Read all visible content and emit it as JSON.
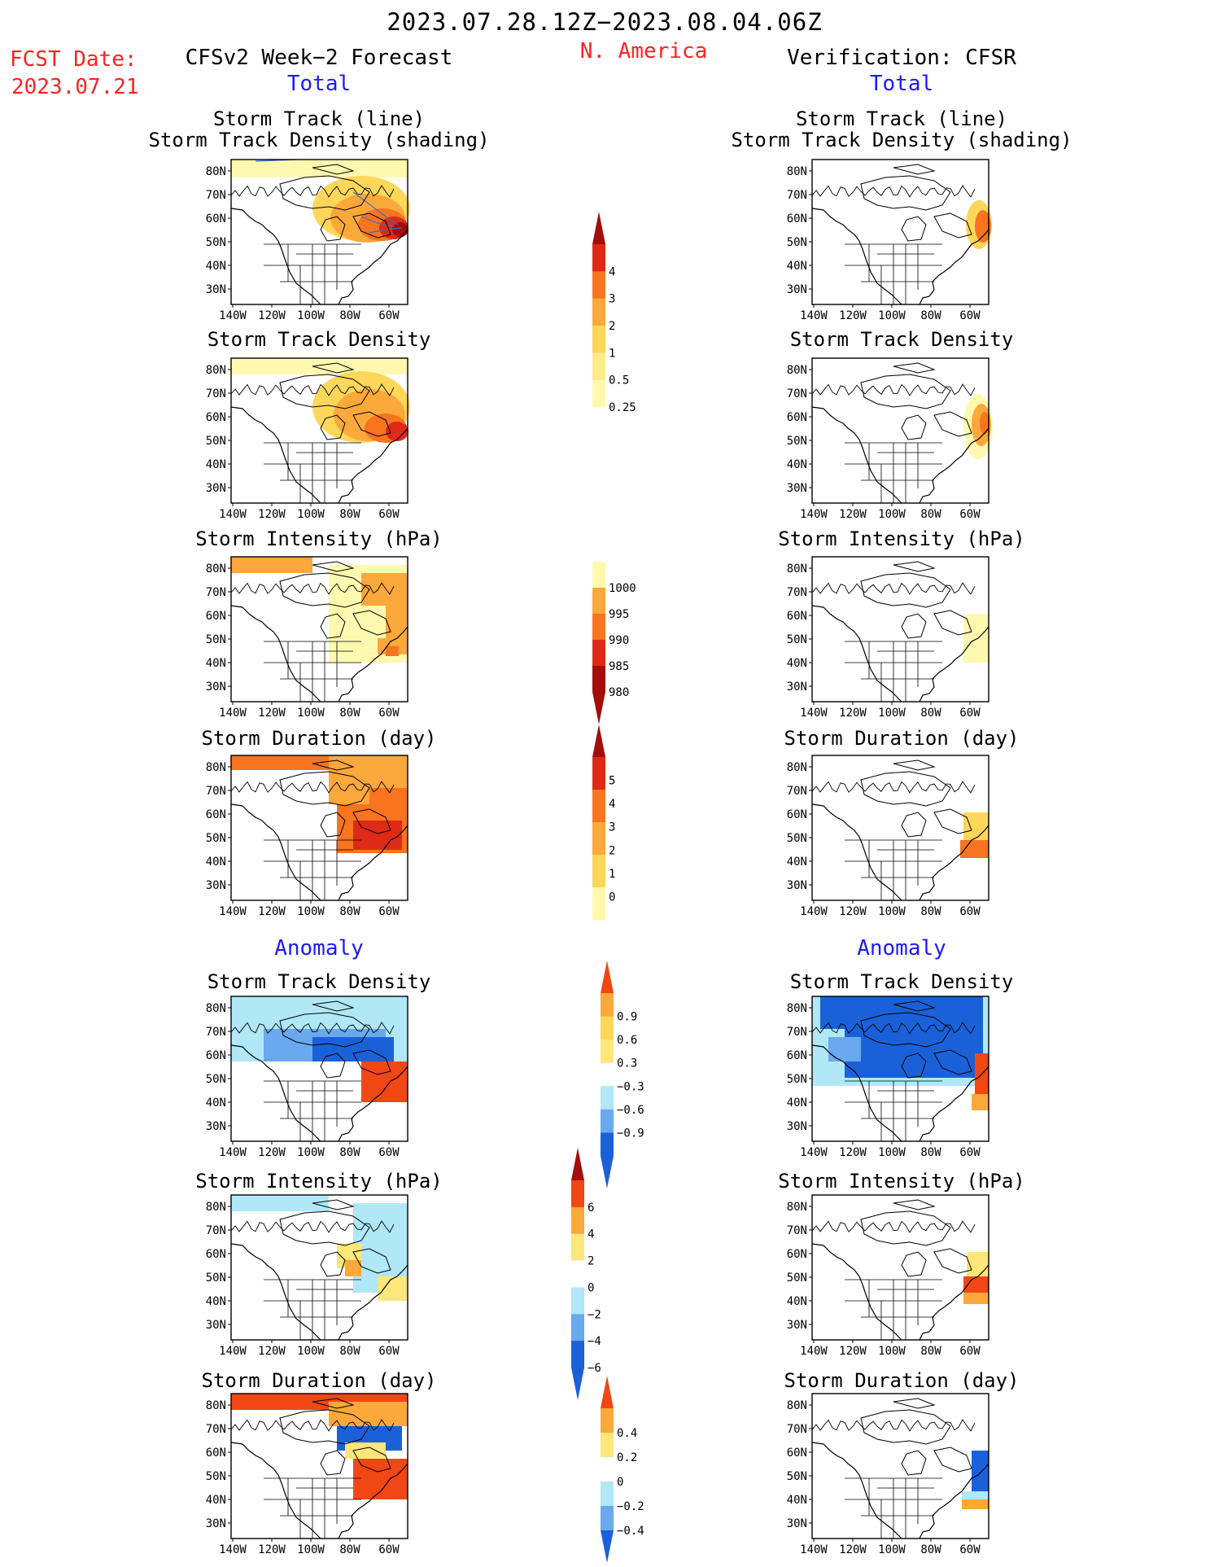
{
  "header": {
    "date_range": "2023.07.28.12Z−2023.08.04.06Z",
    "fcst_label": "FCST Date:",
    "fcst_date": "2023.07.21",
    "left_title": "CFSv2 Week−2 Forecast",
    "region": "N. America",
    "right_title": "Verification: CFSR",
    "total_label": "Total",
    "anomaly_label": "Anomaly"
  },
  "axes": {
    "lat_ticks": [
      "80N",
      "70N",
      "60N",
      "50N",
      "40N",
      "30N"
    ],
    "lon_ticks": [
      "140W",
      "120W",
      "100W",
      "80W",
      "60W"
    ]
  },
  "colors": {
    "total_density": [
      "#fff9b0",
      "#fcd75a",
      "#fca83a",
      "#f8741f",
      "#de2a16",
      "#a30d0a"
    ],
    "total_intensity": [
      "#fff9b0",
      "#fca83a",
      "#f8741f",
      "#de2a16",
      "#a30d0a"
    ],
    "anomaly": [
      "#1a61d9",
      "#6aa9ee",
      "#b0e8f7",
      "#ffffff",
      "#fde67a",
      "#fca83a",
      "#f14715"
    ]
  },
  "colorbars": [
    {
      "id": "cb-density",
      "labels": [
        "4",
        "3",
        "2",
        "1",
        "0.5",
        "0.25"
      ]
    },
    {
      "id": "cb-intensity",
      "labels": [
        "1000",
        "995",
        "990",
        "985",
        "980"
      ]
    },
    {
      "id": "cb-duration",
      "labels": [
        "5",
        "4",
        "3",
        "2",
        "1",
        "0"
      ]
    },
    {
      "id": "cb-anom-density",
      "labels": [
        "0.9",
        "0.6",
        "0.3",
        "−0.3",
        "−0.6",
        "−0.9"
      ]
    },
    {
      "id": "cb-anom-intensity",
      "labels": [
        "6",
        "4",
        "2",
        "0",
        "−2",
        "−4",
        "−6"
      ]
    },
    {
      "id": "cb-anom-duration",
      "labels": [
        "0.4",
        "0.2",
        "0",
        "−0.2",
        "−0.4"
      ]
    }
  ],
  "chart_data": [
    {
      "type": "heatmap",
      "panel": "forecast-total-track",
      "title": [
        "Storm Track (line)",
        "Storm Track Density (shading)"
      ]
    },
    {
      "type": "heatmap",
      "panel": "verification-total-track",
      "title": [
        "Storm Track (line)",
        "Storm Track Density (shading)"
      ]
    },
    {
      "type": "heatmap",
      "panel": "forecast-total-density",
      "title": [
        "Storm Track Density"
      ]
    },
    {
      "type": "heatmap",
      "panel": "verification-total-density",
      "title": [
        "Storm Track Density"
      ]
    },
    {
      "type": "heatmap",
      "panel": "forecast-total-intensity",
      "title": [
        "Storm Intensity (hPa)"
      ]
    },
    {
      "type": "heatmap",
      "panel": "verification-total-intensity",
      "title": [
        "Storm Intensity (hPa)"
      ]
    },
    {
      "type": "heatmap",
      "panel": "forecast-total-duration",
      "title": [
        "Storm Duration (day)"
      ]
    },
    {
      "type": "heatmap",
      "panel": "verification-total-duration",
      "title": [
        "Storm Duration (day)"
      ]
    },
    {
      "type": "heatmap",
      "panel": "forecast-anomaly-density",
      "title": [
        "Storm Track Density"
      ]
    },
    {
      "type": "heatmap",
      "panel": "verification-anomaly-density",
      "title": [
        "Storm Track Density"
      ]
    },
    {
      "type": "heatmap",
      "panel": "forecast-anomaly-intensity",
      "title": [
        "Storm Intensity (hPa)"
      ]
    },
    {
      "type": "heatmap",
      "panel": "verification-anomaly-intensity",
      "title": [
        "Storm Intensity (hPa)"
      ]
    },
    {
      "type": "heatmap",
      "panel": "forecast-anomaly-duration",
      "title": [
        "Storm Duration (day)"
      ]
    },
    {
      "type": "heatmap",
      "panel": "verification-anomaly-duration",
      "title": [
        "Storm Duration (day)"
      ]
    }
  ]
}
